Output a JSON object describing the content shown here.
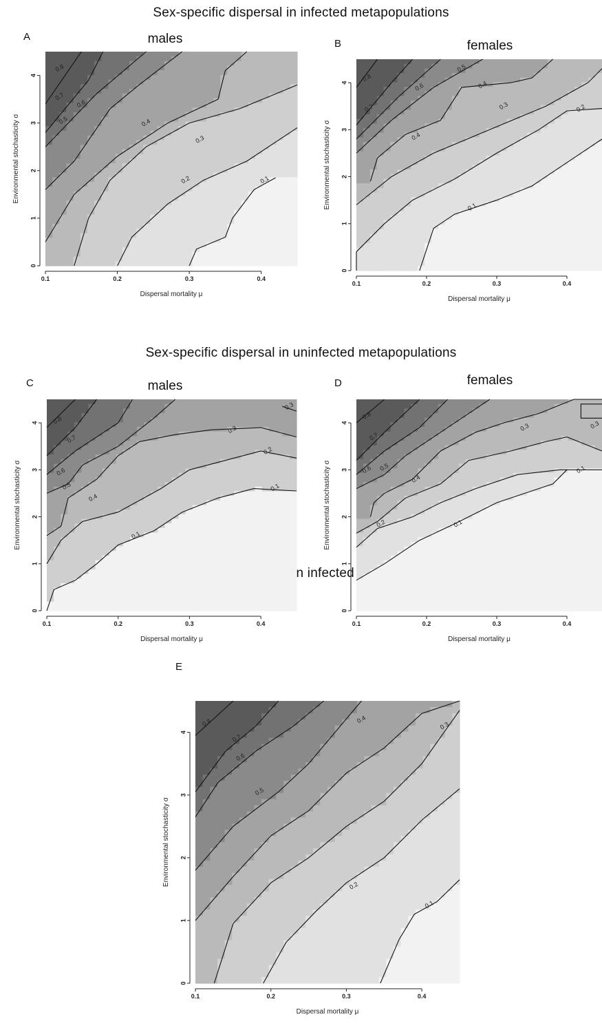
{
  "sections": [
    {
      "title": "Sex-specific dispersal in infected metapopulations"
    },
    {
      "title": "Sex-specific dispersal in uninfected metapopulations"
    },
    {
      "title": "Sex-indifferent dispersal in infected metapopulations"
    }
  ],
  "chart_data": [
    {
      "id": "A",
      "letter": "A",
      "subtitle": "males",
      "type": "heatmap",
      "xlabel": "Dispersal mortality μ",
      "ylabel": "Environmental stochasticity σ",
      "xlim": [
        0.1,
        0.45
      ],
      "ylim": [
        0,
        4.5
      ],
      "xticks": [
        "0.1",
        "0.2",
        "0.3",
        "0.4"
      ],
      "yticks": [
        "0",
        "1",
        "2",
        "3",
        "4"
      ],
      "contours": [
        {
          "level": "0.8",
          "x": [
            0.1,
            0.15
          ],
          "y": [
            3.4,
            4.5
          ]
        },
        {
          "level": "0.7",
          "x": [
            0.1,
            0.16,
            0.18
          ],
          "y": [
            2.8,
            3.9,
            4.5
          ]
        },
        {
          "level": "0.6",
          "x": [
            0.1,
            0.17,
            0.24
          ],
          "y": [
            2.5,
            3.6,
            4.5
          ]
        },
        {
          "level": "0.5",
          "x": [
            0.1,
            0.14,
            0.19,
            0.23,
            0.29
          ],
          "y": [
            1.6,
            2.2,
            3.3,
            3.8,
            4.5
          ]
        },
        {
          "level": "0.4",
          "x": [
            0.1,
            0.14,
            0.2,
            0.27,
            0.34,
            0.35,
            0.38
          ],
          "y": [
            0.5,
            1.5,
            2.3,
            3.0,
            3.5,
            4.1,
            4.5
          ]
        },
        {
          "level": "0.3",
          "x": [
            0.14,
            0.16,
            0.19,
            0.24,
            0.3,
            0.37,
            0.45
          ],
          "y": [
            0,
            1.0,
            1.8,
            2.5,
            3.0,
            3.3,
            3.8
          ]
        },
        {
          "level": "0.2",
          "x": [
            0.2,
            0.22,
            0.27,
            0.32,
            0.38,
            0.45
          ],
          "y": [
            0,
            0.6,
            1.3,
            1.8,
            2.2,
            2.9
          ]
        },
        {
          "level": "0.1",
          "x": [
            0.3,
            0.31,
            0.35,
            0.36,
            0.39,
            0.42
          ],
          "y": [
            0,
            0.35,
            0.6,
            1.0,
            1.6,
            1.85
          ]
        }
      ],
      "contour_labels": [
        {
          "text": "0.8",
          "x": 0.12,
          "y": 4.15
        },
        {
          "text": "0.7",
          "x": 0.12,
          "y": 3.55
        },
        {
          "text": "0.6",
          "x": 0.15,
          "y": 3.4
        },
        {
          "text": "0.5",
          "x": 0.125,
          "y": 3.05
        },
        {
          "text": "0.4",
          "x": 0.24,
          "y": 3.0
        },
        {
          "text": "0.3",
          "x": 0.315,
          "y": 2.65
        },
        {
          "text": "0.2",
          "x": 0.295,
          "y": 1.8
        },
        {
          "text": "0.1",
          "x": 0.405,
          "y": 1.8
        }
      ]
    },
    {
      "id": "B",
      "letter": "B",
      "subtitle": "females",
      "type": "heatmap",
      "xlabel": "Dispersal mortality μ",
      "ylabel": "Environmental stochasticity σ",
      "xlim": [
        0.1,
        0.45
      ],
      "ylim": [
        0,
        4.5
      ],
      "xticks": [
        "0.1",
        "0.2",
        "0.3",
        "0.4"
      ],
      "yticks": [
        "0",
        "1",
        "2",
        "3",
        "4"
      ],
      "contours": [
        {
          "level": "0.8",
          "x": [
            0.1,
            0.13
          ],
          "y": [
            3.9,
            4.5
          ]
        },
        {
          "level": "0.7",
          "x": [
            0.1,
            0.15,
            0.18
          ],
          "y": [
            3.1,
            4.0,
            4.5
          ]
        },
        {
          "level": "0.6",
          "x": [
            0.1,
            0.16,
            0.22
          ],
          "y": [
            2.8,
            3.7,
            4.5
          ]
        },
        {
          "level": "0.5",
          "x": [
            0.1,
            0.15,
            0.21,
            0.28
          ],
          "y": [
            2.5,
            3.2,
            3.9,
            4.5
          ]
        },
        {
          "level": "0.4",
          "x": [
            0.12,
            0.13,
            0.17,
            0.22,
            0.25,
            0.32,
            0.35,
            0.38
          ],
          "y": [
            1.9,
            2.4,
            2.9,
            3.2,
            3.9,
            4.0,
            4.1,
            4.5
          ]
        },
        {
          "level": "0.3",
          "x": [
            0.1,
            0.15,
            0.21,
            0.29,
            0.37,
            0.43,
            0.45
          ],
          "y": [
            1.4,
            2.0,
            2.5,
            3.0,
            3.5,
            4.0,
            4.3
          ]
        },
        {
          "level": "0.2",
          "x": [
            0.1,
            0.14,
            0.18,
            0.24,
            0.3,
            0.36,
            0.4,
            0.45
          ],
          "y": [
            0.4,
            1.0,
            1.5,
            1.95,
            2.5,
            3.0,
            3.4,
            3.45
          ]
        },
        {
          "level": "0.1",
          "x": [
            0.19,
            0.21,
            0.24,
            0.3,
            0.35,
            0.41,
            0.45
          ],
          "y": [
            0,
            0.9,
            1.2,
            1.5,
            1.8,
            2.4,
            2.8
          ]
        },
        {
          "level": "0.1",
          "x": [
            0.1,
            0.1
          ],
          "y": [
            0,
            0.4
          ]
        }
      ],
      "contour_labels": [
        {
          "text": "0.8",
          "x": 0.115,
          "y": 4.1
        },
        {
          "text": "0.7",
          "x": 0.118,
          "y": 3.45
        },
        {
          "text": "0.6",
          "x": 0.19,
          "y": 3.9
        },
        {
          "text": "0.5",
          "x": 0.25,
          "y": 4.3
        },
        {
          "text": "0.4",
          "x": 0.28,
          "y": 3.95
        },
        {
          "text": "0.3",
          "x": 0.31,
          "y": 3.5
        },
        {
          "text": "0.4",
          "x": 0.185,
          "y": 2.85
        },
        {
          "text": "0.2",
          "x": 0.42,
          "y": 3.45
        },
        {
          "text": "0.1",
          "x": 0.265,
          "y": 1.35
        }
      ]
    },
    {
      "id": "C",
      "letter": "C",
      "subtitle": "males",
      "type": "heatmap",
      "xlabel": "Dispersal mortality μ",
      "ylabel": "Environmental stochasticity σ",
      "xlim": [
        0.1,
        0.45
      ],
      "ylim": [
        0,
        4.5
      ],
      "xticks": [
        "0.1",
        "0.2",
        "0.3",
        "0.4"
      ],
      "yticks": [
        "0",
        "1",
        "2",
        "3",
        "4"
      ],
      "contours": [
        {
          "level": "0.8",
          "x": [
            0.1,
            0.14
          ],
          "y": [
            3.9,
            4.5
          ]
        },
        {
          "level": "0.7",
          "x": [
            0.1,
            0.14,
            0.17
          ],
          "y": [
            3.3,
            3.9,
            4.5
          ]
        },
        {
          "level": "0.6",
          "x": [
            0.1,
            0.14,
            0.2,
            0.22
          ],
          "y": [
            2.9,
            3.4,
            4.0,
            4.5
          ]
        },
        {
          "level": "0.5",
          "x": [
            0.1,
            0.13,
            0.15,
            0.2,
            0.25,
            0.28
          ],
          "y": [
            2.5,
            2.7,
            3.1,
            3.5,
            4.1,
            4.5
          ]
        },
        {
          "level": "0.4",
          "x": [
            0.1,
            0.12,
            0.13,
            0.17,
            0.2,
            0.23,
            0.28,
            0.33,
            0.4,
            0.45
          ],
          "y": [
            1.6,
            1.8,
            2.4,
            2.8,
            3.3,
            3.6,
            3.75,
            3.85,
            3.9,
            3.7
          ]
        },
        {
          "level": "0.3",
          "x": [
            0.1,
            0.12,
            0.15,
            0.2,
            0.26,
            0.3,
            0.35,
            0.4,
            0.45
          ],
          "y": [
            1.0,
            1.5,
            1.9,
            2.1,
            2.6,
            3.0,
            3.2,
            3.4,
            3.25
          ]
        },
        {
          "level": "0.2",
          "x": [
            0.1,
            0.11,
            0.14,
            0.17,
            0.2,
            0.25,
            0.29,
            0.34,
            0.39,
            0.45
          ],
          "y": [
            0,
            0.45,
            0.65,
            1.0,
            1.4,
            1.7,
            2.1,
            2.4,
            2.6,
            2.55
          ]
        },
        {
          "level": "0.3",
          "x": [
            0.43,
            0.45
          ],
          "y": [
            4.35,
            4.25
          ]
        }
      ],
      "contour_labels": [
        {
          "text": "0.8",
          "x": 0.115,
          "y": 4.05
        },
        {
          "text": "0.7",
          "x": 0.135,
          "y": 3.65
        },
        {
          "text": "0.6",
          "x": 0.12,
          "y": 2.95
        },
        {
          "text": "0.5",
          "x": 0.128,
          "y": 2.65
        },
        {
          "text": "0.4",
          "x": 0.165,
          "y": 2.4
        },
        {
          "text": "0.3",
          "x": 0.36,
          "y": 3.85
        },
        {
          "text": "0.2",
          "x": 0.41,
          "y": 3.4
        },
        {
          "text": "0.1",
          "x": 0.42,
          "y": 2.62
        },
        {
          "text": "0.1",
          "x": 0.225,
          "y": 1.6
        },
        {
          "text": "0.3",
          "x": 0.44,
          "y": 4.35
        }
      ]
    },
    {
      "id": "D",
      "letter": "D",
      "subtitle": "females",
      "type": "heatmap",
      "xlabel": "Dispersal mortality μ",
      "ylabel": "Environmental stochasticity σ",
      "xlim": [
        0.1,
        0.45
      ],
      "ylim": [
        0,
        4.5
      ],
      "xticks": [
        "0.1",
        "0.2",
        "0.3",
        "0.4"
      ],
      "yticks": [
        "0",
        "1",
        "2",
        "3",
        "4"
      ],
      "contours": [
        {
          "level": "0.8",
          "x": [
            0.1,
            0.14
          ],
          "y": [
            4.0,
            4.5
          ]
        },
        {
          "level": "0.7",
          "x": [
            0.1,
            0.14,
            0.19
          ],
          "y": [
            3.2,
            3.8,
            4.5
          ]
        },
        {
          "level": "0.6",
          "x": [
            0.1,
            0.14,
            0.19,
            0.23
          ],
          "y": [
            2.9,
            3.4,
            3.9,
            4.5
          ]
        },
        {
          "level": "0.5",
          "x": [
            0.1,
            0.14,
            0.17,
            0.22,
            0.25,
            0.29
          ],
          "y": [
            2.6,
            2.9,
            3.3,
            3.8,
            4.1,
            4.5
          ]
        },
        {
          "level": "0.4",
          "x": [
            0.12,
            0.125,
            0.14,
            0.18,
            0.22,
            0.27,
            0.31,
            0.36,
            0.41,
            0.45
          ],
          "y": [
            2.0,
            2.3,
            2.5,
            2.8,
            3.4,
            3.8,
            4.0,
            4.2,
            4.5,
            4.5
          ]
        },
        {
          "level": "0.3",
          "x": [
            0.1,
            0.13,
            0.17,
            0.22,
            0.26,
            0.32,
            0.37,
            0.4,
            0.45
          ],
          "y": [
            1.65,
            1.9,
            2.4,
            2.7,
            3.2,
            3.4,
            3.6,
            3.7,
            3.4
          ]
        },
        {
          "level": "0.2",
          "x": [
            0.1,
            0.13,
            0.18,
            0.22,
            0.27,
            0.33,
            0.39,
            0.4,
            0.45
          ],
          "y": [
            1.35,
            1.75,
            2.0,
            2.3,
            2.6,
            2.9,
            3.0,
            3.0,
            3.0
          ]
        },
        {
          "level": "0.1",
          "x": [
            0.1,
            0.14,
            0.19,
            0.24,
            0.3,
            0.35,
            0.38,
            0.4
          ],
          "y": [
            0.65,
            1.0,
            1.5,
            1.85,
            2.3,
            2.55,
            2.7,
            3.0
          ]
        },
        {
          "level": "0.3",
          "x": [
            0.45,
            0.42,
            0.42,
            0.45
          ],
          "y": [
            4.4,
            4.4,
            4.1,
            4.1
          ]
        }
      ],
      "contour_labels": [
        {
          "text": "0.8",
          "x": 0.115,
          "y": 4.15
        },
        {
          "text": "0.7",
          "x": 0.125,
          "y": 3.7
        },
        {
          "text": "0.6",
          "x": 0.115,
          "y": 3.0
        },
        {
          "text": "0.5",
          "x": 0.14,
          "y": 3.05
        },
        {
          "text": "0.4",
          "x": 0.185,
          "y": 2.8
        },
        {
          "text": "0.3",
          "x": 0.34,
          "y": 3.9
        },
        {
          "text": "0.3",
          "x": 0.44,
          "y": 3.95
        },
        {
          "text": "0.2",
          "x": 0.135,
          "y": 1.85
        },
        {
          "text": "0.1",
          "x": 0.42,
          "y": 3.0
        },
        {
          "text": "0.1",
          "x": 0.245,
          "y": 1.85
        }
      ]
    },
    {
      "id": "E",
      "letter": "E",
      "subtitle": "",
      "type": "heatmap",
      "xlabel": "Dispersal mortality μ",
      "ylabel": "Environmental stochasticity σ",
      "xlim": [
        0.1,
        0.45
      ],
      "ylim": [
        0,
        4.5
      ],
      "xticks": [
        "0.1",
        "0.2",
        "0.3",
        "0.4"
      ],
      "yticks": [
        "0",
        "1",
        "2",
        "3",
        "4"
      ],
      "contours": [
        {
          "level": "0.8",
          "x": [
            0.1,
            0.15
          ],
          "y": [
            3.95,
            4.5
          ]
        },
        {
          "level": "0.7",
          "x": [
            0.1,
            0.14,
            0.18,
            0.21
          ],
          "y": [
            3.05,
            3.7,
            4.1,
            4.5
          ]
        },
        {
          "level": "0.6",
          "x": [
            0.1,
            0.13,
            0.18,
            0.23,
            0.27
          ],
          "y": [
            2.65,
            3.2,
            3.7,
            4.1,
            4.5
          ]
        },
        {
          "level": "0.5",
          "x": [
            0.1,
            0.15,
            0.21,
            0.25,
            0.32
          ],
          "y": [
            1.8,
            2.5,
            3.05,
            3.5,
            4.5
          ]
        },
        {
          "level": "0.4",
          "x": [
            0.1,
            0.15,
            0.2,
            0.25,
            0.3,
            0.35,
            0.4,
            0.45
          ],
          "y": [
            1.0,
            1.7,
            2.35,
            2.75,
            3.35,
            3.75,
            4.3,
            4.5
          ]
        },
        {
          "level": "0.3",
          "x": [
            0.125,
            0.15,
            0.2,
            0.25,
            0.3,
            0.35,
            0.4,
            0.45
          ],
          "y": [
            0,
            0.95,
            1.6,
            2.0,
            2.5,
            2.9,
            3.5,
            4.35
          ]
        },
        {
          "level": "0.2",
          "x": [
            0.19,
            0.22,
            0.26,
            0.3,
            0.35,
            0.4,
            0.45
          ],
          "y": [
            0,
            0.65,
            1.15,
            1.6,
            2.0,
            2.6,
            3.1
          ]
        },
        {
          "level": "0.1",
          "x": [
            0.345,
            0.37,
            0.39,
            0.42,
            0.45
          ],
          "y": [
            0,
            0.7,
            1.1,
            1.3,
            1.65
          ]
        }
      ],
      "contour_labels": [
        {
          "text": "0.8",
          "x": 0.115,
          "y": 4.15
        },
        {
          "text": "0.7",
          "x": 0.155,
          "y": 3.9
        },
        {
          "text": "0.6",
          "x": 0.16,
          "y": 3.6
        },
        {
          "text": "0.5",
          "x": 0.185,
          "y": 3.05
        },
        {
          "text": "0.4",
          "x": 0.32,
          "y": 4.2
        },
        {
          "text": "0.3",
          "x": 0.43,
          "y": 4.1
        },
        {
          "text": "0.2",
          "x": 0.31,
          "y": 1.55
        },
        {
          "text": "0.1",
          "x": 0.41,
          "y": 1.25
        }
      ]
    }
  ]
}
